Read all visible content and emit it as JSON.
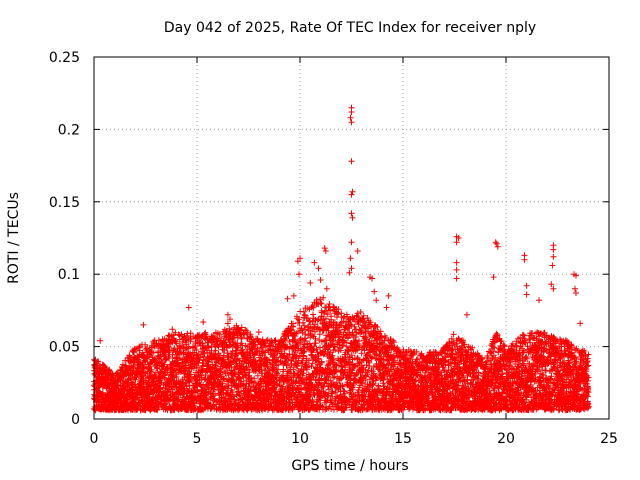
{
  "chart_data": {
    "type": "scatter",
    "title": "Day 042 of 2025, Rate Of TEC Index for receiver nply",
    "xlabel": "GPS time / hours",
    "ylabel": "ROTI / TECUs",
    "xlim": [
      0,
      25
    ],
    "ylim": [
      0,
      0.25
    ],
    "grid": true,
    "marker": "+",
    "x_ticks": [
      0,
      5,
      10,
      15,
      20,
      25
    ],
    "x_tick_labels": [
      "0",
      "5",
      "10",
      "15",
      "20",
      "25"
    ],
    "y_ticks": [
      0,
      0.05,
      0.1,
      0.15,
      0.2,
      0.25
    ],
    "y_tick_labels": [
      "0",
      "0.05",
      "0.1",
      "0.15",
      "0.2",
      "0.25"
    ],
    "envelope_hours": [
      0,
      1,
      2,
      3,
      4,
      5,
      6,
      7,
      8,
      9,
      10,
      10.5,
      11,
      11.5,
      12,
      12.5,
      13,
      14,
      15,
      16,
      17,
      17.5,
      18,
      19,
      19.5,
      20,
      21,
      22,
      22.5,
      23,
      24
    ],
    "envelope_upper": [
      0.045,
      0.03,
      0.05,
      0.055,
      0.06,
      0.06,
      0.06,
      0.065,
      0.055,
      0.055,
      0.075,
      0.08,
      0.085,
      0.08,
      0.075,
      0.07,
      0.075,
      0.06,
      0.05,
      0.045,
      0.05,
      0.06,
      0.055,
      0.04,
      0.06,
      0.05,
      0.06,
      0.06,
      0.055,
      0.055,
      0.045
    ],
    "points": [
      {
        "x": 12.5,
        "y": 0.215
      },
      {
        "x": 12.5,
        "y": 0.212
      },
      {
        "x": 12.45,
        "y": 0.208
      },
      {
        "x": 12.5,
        "y": 0.205
      },
      {
        "x": 12.5,
        "y": 0.178
      },
      {
        "x": 12.55,
        "y": 0.157
      },
      {
        "x": 12.5,
        "y": 0.155
      },
      {
        "x": 12.5,
        "y": 0.142
      },
      {
        "x": 12.55,
        "y": 0.139
      },
      {
        "x": 12.5,
        "y": 0.122
      },
      {
        "x": 12.8,
        "y": 0.116
      },
      {
        "x": 12.45,
        "y": 0.111
      },
      {
        "x": 12.5,
        "y": 0.104
      },
      {
        "x": 12.4,
        "y": 0.101
      },
      {
        "x": 10.0,
        "y": 0.111
      },
      {
        "x": 9.9,
        "y": 0.109
      },
      {
        "x": 9.95,
        "y": 0.1
      },
      {
        "x": 10.7,
        "y": 0.108
      },
      {
        "x": 10.9,
        "y": 0.104
      },
      {
        "x": 11.2,
        "y": 0.118
      },
      {
        "x": 11.25,
        "y": 0.116
      },
      {
        "x": 11.0,
        "y": 0.096
      },
      {
        "x": 10.5,
        "y": 0.094
      },
      {
        "x": 11.3,
        "y": 0.09
      },
      {
        "x": 13.4,
        "y": 0.098
      },
      {
        "x": 13.5,
        "y": 0.097
      },
      {
        "x": 13.6,
        "y": 0.088
      },
      {
        "x": 13.7,
        "y": 0.082
      },
      {
        "x": 17.6,
        "y": 0.126
      },
      {
        "x": 17.7,
        "y": 0.125
      },
      {
        "x": 17.6,
        "y": 0.122
      },
      {
        "x": 17.6,
        "y": 0.108
      },
      {
        "x": 17.6,
        "y": 0.103
      },
      {
        "x": 17.6,
        "y": 0.097
      },
      {
        "x": 19.5,
        "y": 0.122
      },
      {
        "x": 19.55,
        "y": 0.121
      },
      {
        "x": 19.6,
        "y": 0.119
      },
      {
        "x": 19.4,
        "y": 0.098
      },
      {
        "x": 20.9,
        "y": 0.113
      },
      {
        "x": 20.9,
        "y": 0.11
      },
      {
        "x": 21.0,
        "y": 0.092
      },
      {
        "x": 21.0,
        "y": 0.086
      },
      {
        "x": 22.3,
        "y": 0.12
      },
      {
        "x": 22.3,
        "y": 0.117
      },
      {
        "x": 22.3,
        "y": 0.112
      },
      {
        "x": 22.25,
        "y": 0.106
      },
      {
        "x": 22.2,
        "y": 0.093
      },
      {
        "x": 22.3,
        "y": 0.09
      },
      {
        "x": 21.6,
        "y": 0.082
      },
      {
        "x": 23.3,
        "y": 0.1
      },
      {
        "x": 23.4,
        "y": 0.099
      },
      {
        "x": 23.35,
        "y": 0.09
      },
      {
        "x": 23.4,
        "y": 0.087
      },
      {
        "x": 4.6,
        "y": 0.077
      },
      {
        "x": 6.5,
        "y": 0.072
      },
      {
        "x": 6.6,
        "y": 0.069
      },
      {
        "x": 6.5,
        "y": 0.066
      },
      {
        "x": 9.4,
        "y": 0.083
      },
      {
        "x": 9.7,
        "y": 0.085
      },
      {
        "x": 14.3,
        "y": 0.085
      },
      {
        "x": 14.2,
        "y": 0.077
      },
      {
        "x": 0.3,
        "y": 0.054
      },
      {
        "x": 2.4,
        "y": 0.065
      },
      {
        "x": 3.8,
        "y": 0.062
      },
      {
        "x": 5.3,
        "y": 0.067
      },
      {
        "x": 8.0,
        "y": 0.06
      },
      {
        "x": 18.1,
        "y": 0.072
      },
      {
        "x": 23.6,
        "y": 0.066
      }
    ]
  }
}
